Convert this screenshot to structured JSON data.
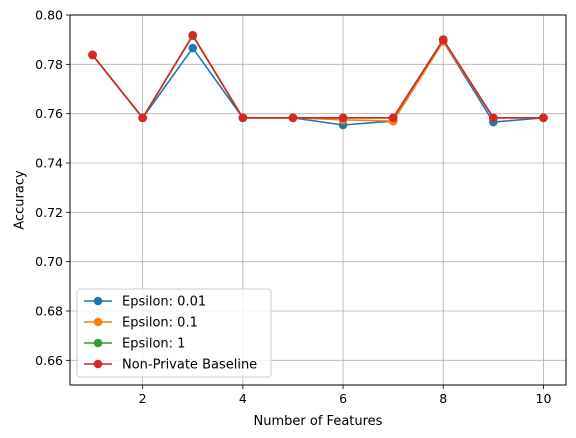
{
  "chart_data": {
    "type": "line",
    "title": "",
    "xlabel": "Number of Features",
    "ylabel": "Accuracy",
    "xlim": [
      0.55,
      10.45
    ],
    "ylim": [
      0.65,
      0.8
    ],
    "xticks": [
      2,
      4,
      6,
      8,
      10
    ],
    "xtick_labels": [
      "2",
      "4",
      "6",
      "8",
      "10"
    ],
    "yticks": [
      0.66,
      0.68,
      0.7,
      0.72,
      0.74,
      0.76,
      0.78,
      0.8
    ],
    "ytick_labels": [
      "0.66",
      "0.68",
      "0.70",
      "0.72",
      "0.74",
      "0.76",
      "0.78",
      "0.80"
    ],
    "grid": true,
    "legend_position": "lower-left",
    "x": [
      1,
      2,
      3,
      4,
      5,
      6,
      7,
      8,
      9,
      10
    ],
    "series": [
      {
        "name": "Epsilon: 0.01",
        "color": "#1f77b4",
        "values": [
          0.7838,
          0.7583,
          0.7866,
          0.7583,
          0.7583,
          0.7554,
          0.757,
          0.7893,
          0.7566,
          0.7583
        ]
      },
      {
        "name": "Epsilon: 0.1",
        "color": "#ff7f0e",
        "values": [
          0.7838,
          0.7583,
          0.7916,
          0.7583,
          0.7583,
          0.7575,
          0.757,
          0.7893,
          0.7583,
          0.7583
        ]
      },
      {
        "name": "Epsilon: 1",
        "color": "#2ca02c",
        "values": [
          0.7838,
          0.7583,
          0.7916,
          0.7583,
          0.7583,
          0.7583,
          0.7583,
          0.79,
          0.7583,
          0.7583
        ]
      },
      {
        "name": "Non-Private Baseline",
        "color": "#d62728",
        "values": [
          0.7838,
          0.7583,
          0.7918,
          0.7583,
          0.7583,
          0.7583,
          0.7583,
          0.79,
          0.7583,
          0.7583
        ]
      }
    ]
  }
}
